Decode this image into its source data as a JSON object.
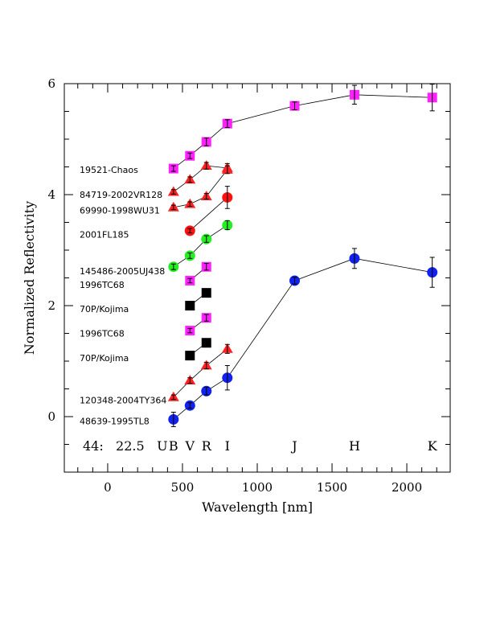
{
  "chart_data": {
    "type": "scatter",
    "xlabel": "Wavelength [nm]",
    "ylabel": "Normalized Reflectivity",
    "xlim": [
      -290,
      2290
    ],
    "ylim": [
      -1,
      6
    ],
    "xticks": [
      0,
      500,
      1000,
      1500,
      2000
    ],
    "yticks": [
      0,
      2,
      4,
      6
    ],
    "grid": false,
    "annotation": "44:   22.5",
    "bands": [
      {
        "label": "U",
        "x": 365
      },
      {
        "label": "B",
        "x": 440
      },
      {
        "label": "V",
        "x": 550
      },
      {
        "label": "R",
        "x": 660
      },
      {
        "label": "I",
        "x": 800
      },
      {
        "label": "J",
        "x": 1250
      },
      {
        "label": "H",
        "x": 1650
      },
      {
        "label": "K",
        "x": 2170
      }
    ],
    "labels": [
      {
        "text": "19521-Chaos",
        "y": 4.45
      },
      {
        "text": "84719-2002VR128",
        "y": 4.0
      },
      {
        "text": "69990-1998WU31",
        "y": 3.72
      },
      {
        "text": "2001FL185",
        "y": 3.28
      },
      {
        "text": "145486-2005UJ438",
        "y": 2.62
      },
      {
        "text": "1996TC68",
        "y": 2.38
      },
      {
        "text": "70P/Kojima",
        "y": 1.94
      },
      {
        "text": "1996TC68",
        "y": 1.5
      },
      {
        "text": "70P/Kojima",
        "y": 1.06
      },
      {
        "text": "120348-2004TY364",
        "y": 0.3
      },
      {
        "text": "48639-1995TL8",
        "y": -0.08
      }
    ],
    "series": [
      {
        "marker": "square",
        "color": "#ff22ff",
        "connected": true,
        "points": [
          [
            440,
            4.47,
            0.05
          ],
          [
            550,
            4.7,
            0.05
          ],
          [
            660,
            4.95,
            0.07
          ],
          [
            800,
            5.28,
            0.07
          ],
          [
            1250,
            5.6,
            0.07
          ],
          [
            1650,
            5.8,
            0.17
          ],
          [
            2170,
            5.75,
            0.24
          ]
        ]
      },
      {
        "marker": "triangle",
        "color": "#ff2222",
        "connected": true,
        "points": [
          [
            440,
            4.05,
            0.04
          ],
          [
            550,
            4.27,
            0.05
          ],
          [
            660,
            4.52,
            0.06
          ],
          [
            800,
            4.48,
            0.08
          ]
        ]
      },
      {
        "marker": "triangle",
        "color": "#ff2222",
        "connected": true,
        "points": [
          [
            440,
            3.77,
            0.04
          ],
          [
            550,
            3.83,
            0.04
          ],
          [
            660,
            3.97,
            0.05
          ],
          [
            800,
            4.45,
            0.07
          ]
        ]
      },
      {
        "marker": "circle",
        "color": "#ff1111",
        "connected": true,
        "points": [
          [
            550,
            3.35,
            0.04
          ],
          [
            800,
            3.95,
            0.2
          ]
        ]
      },
      {
        "marker": "circle",
        "color": "#22ee22",
        "connected": true,
        "points": [
          [
            440,
            2.7,
            0.05
          ],
          [
            550,
            2.9,
            0.05
          ],
          [
            660,
            3.2,
            0.06
          ],
          [
            800,
            3.45,
            0.08
          ]
        ]
      },
      {
        "marker": "square",
        "color": "#ff22ff",
        "connected": true,
        "points": [
          [
            550,
            2.45,
            0.04
          ],
          [
            660,
            2.7,
            0.06
          ]
        ]
      },
      {
        "marker": "square",
        "color": "#000000",
        "connected": true,
        "points": [
          [
            550,
            2.0,
            0.04
          ],
          [
            660,
            2.23,
            0.04
          ]
        ]
      },
      {
        "marker": "square",
        "color": "#ff22ff",
        "connected": true,
        "points": [
          [
            550,
            1.55,
            0.04
          ],
          [
            660,
            1.78,
            0.06
          ]
        ]
      },
      {
        "marker": "square",
        "color": "#000000",
        "connected": true,
        "points": [
          [
            550,
            1.1,
            0.04
          ],
          [
            660,
            1.33,
            0.04
          ]
        ]
      },
      {
        "marker": "triangle",
        "color": "#ff2222",
        "connected": true,
        "points": [
          [
            440,
            0.35,
            0.04
          ],
          [
            550,
            0.65,
            0.05
          ],
          [
            660,
            0.92,
            0.06
          ],
          [
            800,
            1.22,
            0.08
          ]
        ]
      },
      {
        "marker": "circle",
        "color": "#1122ee",
        "connected": true,
        "points": [
          [
            440,
            -0.05,
            0.13
          ],
          [
            550,
            0.2,
            0.05
          ],
          [
            660,
            0.46,
            0.07
          ],
          [
            800,
            0.7,
            0.22
          ],
          [
            1250,
            2.45,
            0.06
          ],
          [
            1650,
            2.85,
            0.18
          ],
          [
            2170,
            2.6,
            0.27
          ]
        ]
      }
    ]
  }
}
